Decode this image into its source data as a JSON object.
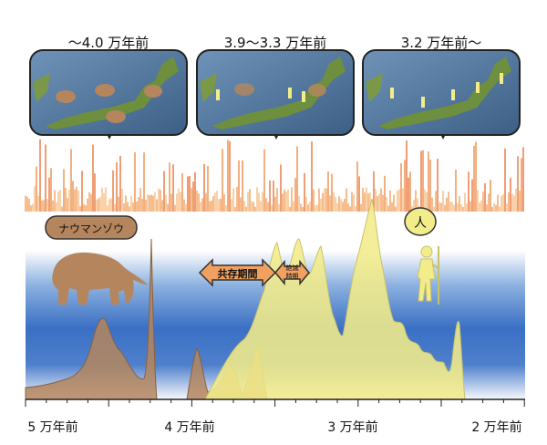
{
  "periods": [
    {
      "label": "〜4.0 万年前"
    },
    {
      "label": "3.9〜3.3 万年前"
    },
    {
      "label": "3.2 万年前〜"
    }
  ],
  "species": {
    "elephant_label": "ナウマンゾウ",
    "human_label": "人"
  },
  "arrows": {
    "coexistence": "共存期間",
    "extinction": "絶滅\n時期"
  },
  "axis": {
    "ticks": [
      "5 万年前",
      "4 万年前",
      "3 万年前",
      "2 万年前"
    ]
  },
  "colors": {
    "warm": "#e8743a",
    "cold": "#3a6fc4",
    "elephant": "#b5865e",
    "human": "#f2ec8a",
    "arrow": "#f0a060"
  },
  "icons": {
    "elephant": "mammoth-silhouette-icon",
    "human": "human-with-spear-icon",
    "map": "japan-map-icon"
  }
}
